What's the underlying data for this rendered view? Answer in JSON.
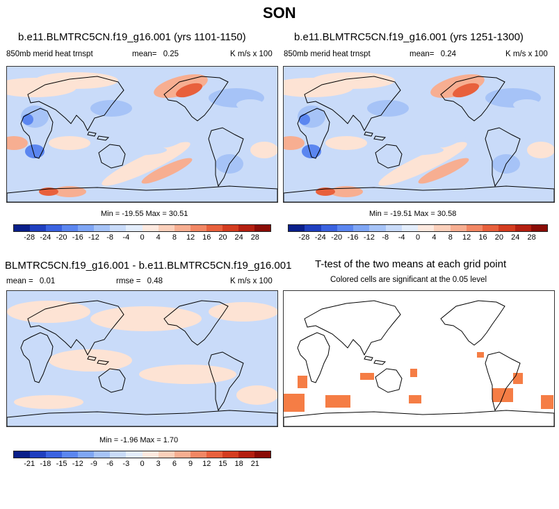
{
  "figure_title": "SON",
  "panels": {
    "top_left": {
      "title": "b.e11.BLMTRC5CN.f19_g16.001 (yrs 1101-1150)",
      "variable": "850mb merid heat trnspt",
      "mean_label": "mean=",
      "mean_value": "0.25",
      "units": "K m/s x 100",
      "minmax": "Min = -19.55 Max =  30.51"
    },
    "top_right": {
      "title": "b.e11.BLMTRC5CN.f19_g16.001 (yrs 1251-1300)",
      "variable": "850mb merid heat trnspt",
      "mean_label": "mean=",
      "mean_value": "0.24",
      "units": "K m/s x 100",
      "minmax": "Min = -19.51 Max =  30.58"
    },
    "bottom_left": {
      "title": "BLMTRC5CN.f19_g16.001 - b.e11.BLMTRC5CN.f19_g16.001",
      "mean_label": "mean =",
      "mean_value": "0.01",
      "rmse_label": "rmse =",
      "rmse_value": "0.48",
      "units": "K m/s x 100",
      "minmax": "Min = -1.96 Max =  1.70"
    },
    "bottom_right": {
      "title": "T-test of the two means at each grid point",
      "subtitle": "Colored cells are significant at the 0.05 level"
    }
  },
  "colorbars": {
    "colors": [
      "#0a1f8a",
      "#1f3fbf",
      "#3a62e0",
      "#5b86f0",
      "#7fa6f5",
      "#a6c3f7",
      "#c9dbf9",
      "#e3edfb",
      "#fde9df",
      "#fbd0bb",
      "#f7ae91",
      "#f28764",
      "#e8603c",
      "#d43c1f",
      "#b41f10",
      "#8a0c06"
    ],
    "main_ticks": [
      "-28",
      "-24",
      "-20",
      "-16",
      "-12",
      "-8",
      "-4",
      "0",
      "4",
      "8",
      "12",
      "16",
      "20",
      "24",
      "28"
    ],
    "diff_ticks": [
      "-21",
      "-18",
      "-15",
      "-12",
      "-9",
      "-6",
      "-3",
      "0",
      "3",
      "6",
      "9",
      "12",
      "15",
      "18",
      "21"
    ]
  },
  "map_colors": {
    "neg_strong": "#5b86f0",
    "neg_mid": "#a6c3f7",
    "neg_weak": "#c9dbf9",
    "pos_weak": "#fde3d4",
    "pos_mid": "#f7ae91",
    "pos_strong": "#e8603c",
    "significant": "#f57d45",
    "coast": "#000000"
  }
}
